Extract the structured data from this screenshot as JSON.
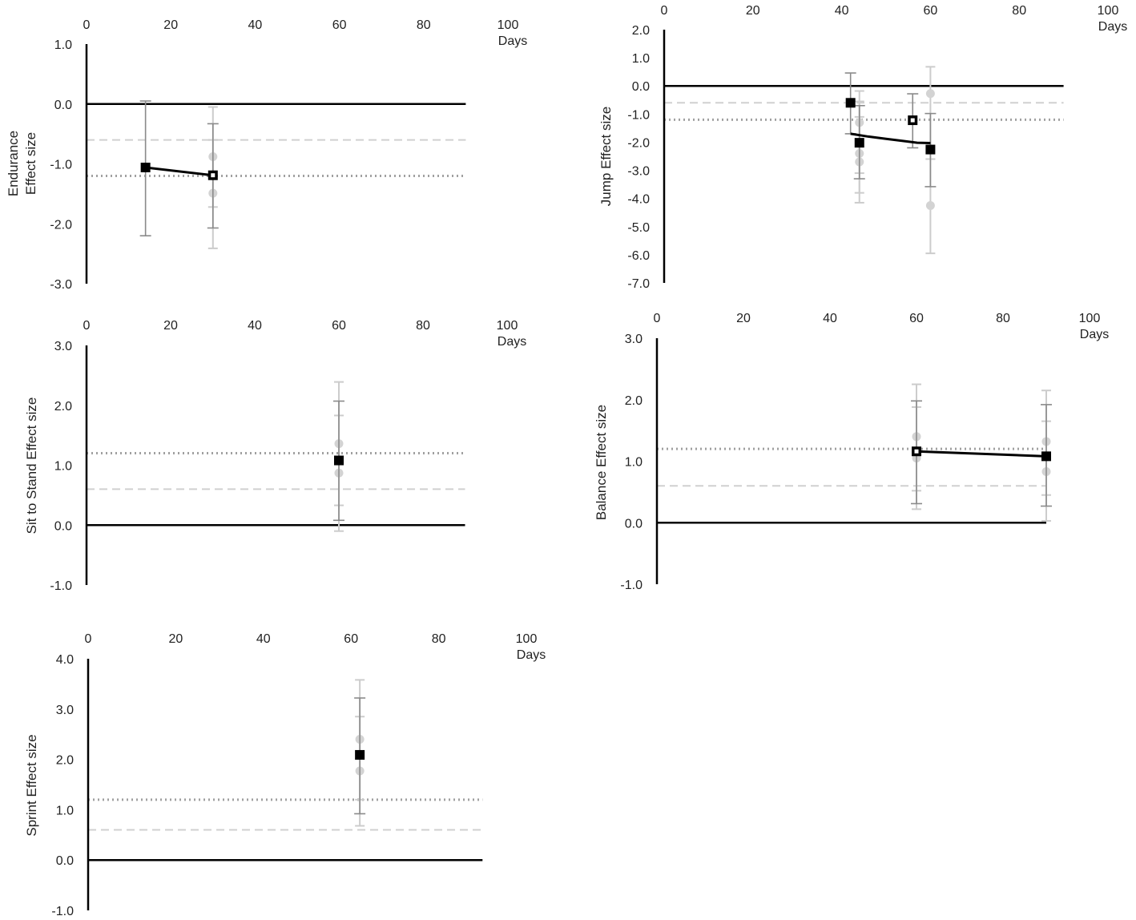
{
  "figure": {
    "x_unit_label": "Days",
    "x_ticks": [
      0,
      20,
      40,
      60,
      80,
      100
    ],
    "reference_lines": {
      "dashed_light": {
        "style": "dashed",
        "color": "#d0d0d0"
      },
      "dotted_dark": {
        "style": "dotted",
        "color": "#a0a0a0"
      }
    },
    "colors": {
      "axis": "#000000",
      "mean_marker": "#000000",
      "study_marker": "#d3d3d3",
      "errbar_dark": "#8a8a8a",
      "errbar_light": "#cccccc"
    }
  },
  "chart_data": [
    {
      "id": "endurance",
      "type": "scatter",
      "title": "",
      "xlabel": "Days",
      "ylabel": "Endurance Effect size",
      "ylabel_lines": [
        "Endurance",
        "Effect  size"
      ],
      "xlim": [
        0,
        100
      ],
      "axis_end_x": 90,
      "ylim": [
        -3.0,
        1.0
      ],
      "yticks": [
        "1.0",
        "0.0",
        "-1.0",
        "-2.0",
        "-3.0"
      ],
      "ytick_values": [
        1,
        0,
        -1,
        -2,
        -3
      ],
      "grid": false,
      "reference_lines": {
        "dashed": -0.6,
        "dotted": -1.2
      },
      "pooled_points": [
        {
          "x": 14,
          "y": -1.06,
          "marker": "filled-square",
          "ci_dark": [
            -2.2,
            0.05
          ]
        },
        {
          "x": 30,
          "y": -1.19,
          "marker": "open-square",
          "ci_dark": [
            -2.07,
            -0.33
          ]
        }
      ],
      "study_points": [
        {
          "x": 30,
          "y": -0.88,
          "ci": [
            -2.41,
            -0.05
          ]
        },
        {
          "x": 30,
          "y": -1.49,
          "ci": [
            -1.72,
            -0.6
          ]
        }
      ],
      "trend_line": [
        [
          14,
          -1.06
        ],
        [
          30,
          -1.19
        ]
      ]
    },
    {
      "id": "jump",
      "type": "scatter",
      "title": "",
      "xlabel": "Days",
      "ylabel": "Jump Effect  size",
      "ylabel_lines": [
        "Jump Effect  size"
      ],
      "xlim": [
        0,
        100
      ],
      "axis_end_x": 90,
      "ylim": [
        -7.0,
        2.0
      ],
      "yticks": [
        "2.0",
        "1.0",
        "0.0",
        "-1.0",
        "-2.0",
        "-3.0",
        "-4.0",
        "-5.0",
        "-6.0",
        "-7.0"
      ],
      "ytick_values": [
        2,
        1,
        0,
        -1,
        -2,
        -3,
        -4,
        -5,
        -6,
        -7
      ],
      "grid": false,
      "reference_lines": {
        "dashed": -0.6,
        "dotted": -1.2
      },
      "pooled_points": [
        {
          "x": 42,
          "y": -0.6,
          "marker": "filled-square",
          "ci_dark": [
            -1.7,
            0.46
          ]
        },
        {
          "x": 44,
          "y": -2.02,
          "marker": "filled-square",
          "ci_dark": [
            -3.3,
            -0.7
          ]
        },
        {
          "x": 56,
          "y": -1.22,
          "marker": "open-square",
          "ci_dark": [
            -2.2,
            -0.28
          ]
        },
        {
          "x": 60,
          "y": -2.26,
          "marker": "filled-square",
          "ci_dark": [
            -3.58,
            -0.98
          ]
        }
      ],
      "study_points": [
        {
          "x": 44,
          "y": -1.3,
          "ci": [
            -4.15,
            -0.18
          ]
        },
        {
          "x": 44,
          "y": -2.4,
          "ci": [
            -3.8,
            -0.55
          ]
        },
        {
          "x": 44,
          "y": -2.7,
          "ci": [
            -3.1,
            -1.1
          ]
        },
        {
          "x": 60,
          "y": -0.27,
          "ci": [
            -2.6,
            0.68
          ]
        },
        {
          "x": 60,
          "y": -4.25,
          "ci": [
            -5.95,
            -2.6
          ]
        }
      ],
      "trend_line": [
        [
          42,
          -1.7
        ],
        [
          46,
          -1.8
        ],
        [
          50,
          -1.88
        ],
        [
          54,
          -1.96
        ],
        [
          57,
          -2.02
        ],
        [
          60,
          -2.03
        ]
      ]
    },
    {
      "id": "sit-to-stand",
      "type": "scatter",
      "title": "",
      "xlabel": "Days",
      "ylabel": "Sit to Stand Effect  size",
      "ylabel_lines": [
        "Sit to Stand Effect  size"
      ],
      "xlim": [
        0,
        100
      ],
      "axis_end_x": 90,
      "ylim": [
        -1.0,
        3.0
      ],
      "yticks": [
        "3.0",
        "2.0",
        "1.0",
        "0.0",
        "-1.0"
      ],
      "ytick_values": [
        3,
        2,
        1,
        0,
        -1
      ],
      "grid": false,
      "reference_lines": {
        "dashed": 0.6,
        "dotted": 1.2
      },
      "pooled_points": [
        {
          "x": 60,
          "y": 1.08,
          "marker": "filled-square",
          "ci_dark": [
            0.08,
            2.07
          ]
        }
      ],
      "study_points": [
        {
          "x": 60,
          "y": 1.36,
          "ci": [
            -0.1,
            2.39
          ]
        },
        {
          "x": 60,
          "y": 0.87,
          "ci": [
            0.33,
            1.83
          ]
        }
      ],
      "trend_line": []
    },
    {
      "id": "balance",
      "type": "scatter",
      "title": "",
      "xlabel": "Days",
      "ylabel": "Balance Effect  size",
      "ylabel_lines": [
        "Balance Effect  size"
      ],
      "xlim": [
        0,
        100
      ],
      "axis_end_x": 90,
      "ylim": [
        -1.0,
        3.0
      ],
      "yticks": [
        "3.0",
        "2.0",
        "1.0",
        "0.0",
        "-1.0"
      ],
      "ytick_values": [
        3,
        2,
        1,
        0,
        -1
      ],
      "grid": false,
      "reference_lines": {
        "dashed": 0.6,
        "dotted": 1.2
      },
      "pooled_points": [
        {
          "x": 60,
          "y": 1.16,
          "marker": "open-square",
          "ci_dark": [
            0.31,
            1.98
          ]
        },
        {
          "x": 90,
          "y": 1.08,
          "marker": "filled-square",
          "ci_dark": [
            0.27,
            1.92
          ]
        }
      ],
      "study_points": [
        {
          "x": 60,
          "y": 1.4,
          "ci": [
            0.22,
            2.25
          ]
        },
        {
          "x": 60,
          "y": 1.05,
          "ci": [
            0.52,
            1.88
          ]
        },
        {
          "x": 90,
          "y": 1.32,
          "ci": [
            0.45,
            2.15
          ]
        },
        {
          "x": 90,
          "y": 0.83,
          "ci": [
            0.03,
            1.65
          ]
        }
      ],
      "trend_line": [
        [
          60,
          1.16
        ],
        [
          90,
          1.08
        ]
      ]
    },
    {
      "id": "sprint",
      "type": "scatter",
      "title": "",
      "xlabel": "Days",
      "ylabel": "Sprint Effect  size",
      "ylabel_lines": [
        "Sprint Effect  size"
      ],
      "xlim": [
        0,
        100
      ],
      "axis_end_x": 90,
      "ylim": [
        -1.0,
        4.0
      ],
      "yticks": [
        "4.0",
        "3.0",
        "2.0",
        "1.0",
        "0.0",
        "-1.0"
      ],
      "ytick_values": [
        4,
        3,
        2,
        1,
        0,
        -1
      ],
      "grid": false,
      "reference_lines": {
        "dashed": 0.6,
        "dotted": 1.2
      },
      "pooled_points": [
        {
          "x": 62,
          "y": 2.09,
          "marker": "filled-square",
          "ci_dark": [
            0.92,
            3.22
          ]
        }
      ],
      "study_points": [
        {
          "x": 62,
          "y": 2.4,
          "ci": [
            0.68,
            3.58
          ]
        },
        {
          "x": 62,
          "y": 1.77,
          "ci": [
            1.2,
            2.85
          ]
        }
      ],
      "trend_line": []
    }
  ]
}
